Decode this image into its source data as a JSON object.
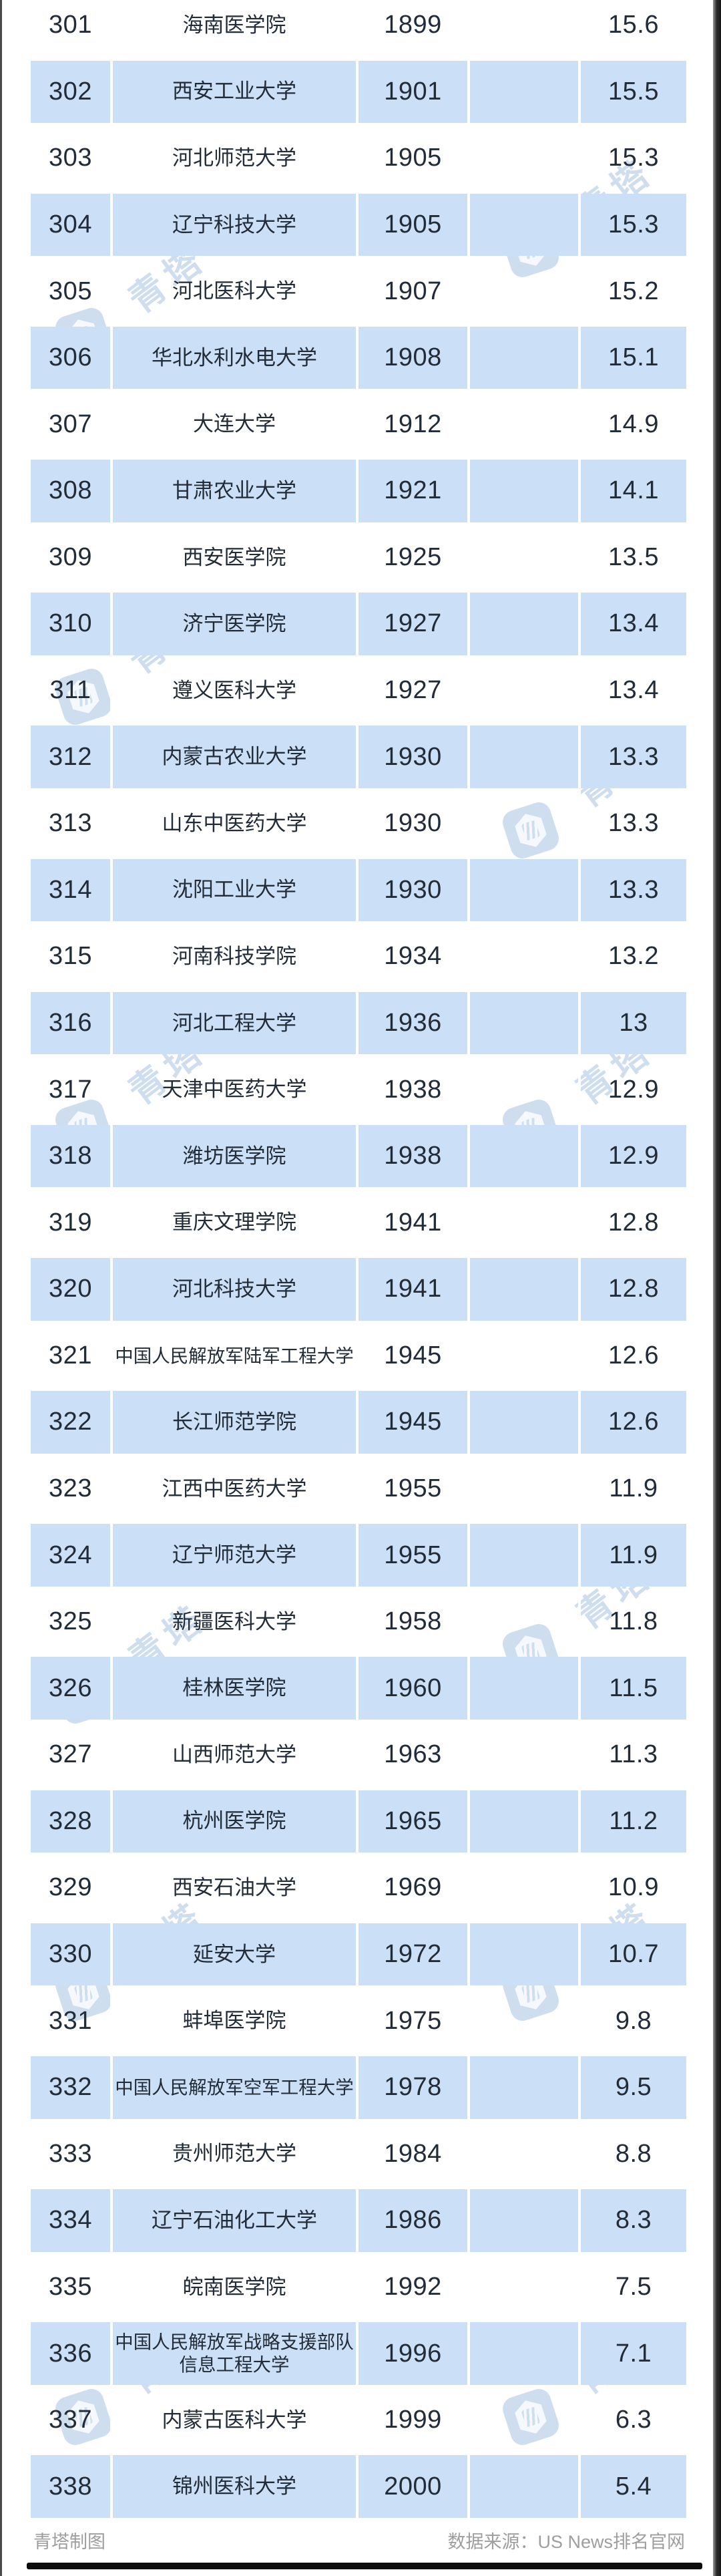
{
  "chart_data": {
    "type": "table",
    "columns": [
      "rank",
      "university",
      "world_rank",
      "score"
    ],
    "rows": [
      {
        "rank": "301",
        "university": "海南医学院",
        "world_rank": "1899",
        "score": "15.6"
      },
      {
        "rank": "302",
        "university": "西安工业大学",
        "world_rank": "1901",
        "score": "15.5"
      },
      {
        "rank": "303",
        "university": "河北师范大学",
        "world_rank": "1905",
        "score": "15.3"
      },
      {
        "rank": "304",
        "university": "辽宁科技大学",
        "world_rank": "1905",
        "score": "15.3"
      },
      {
        "rank": "305",
        "university": "河北医科大学",
        "world_rank": "1907",
        "score": "15.2"
      },
      {
        "rank": "306",
        "university": "华北水利水电大学",
        "world_rank": "1908",
        "score": "15.1"
      },
      {
        "rank": "307",
        "university": "大连大学",
        "world_rank": "1912",
        "score": "14.9"
      },
      {
        "rank": "308",
        "university": "甘肃农业大学",
        "world_rank": "1921",
        "score": "14.1"
      },
      {
        "rank": "309",
        "university": "西安医学院",
        "world_rank": "1925",
        "score": "13.5"
      },
      {
        "rank": "310",
        "university": "济宁医学院",
        "world_rank": "1927",
        "score": "13.4"
      },
      {
        "rank": "311",
        "university": "遵义医科大学",
        "world_rank": "1927",
        "score": "13.4"
      },
      {
        "rank": "312",
        "university": "内蒙古农业大学",
        "world_rank": "1930",
        "score": "13.3"
      },
      {
        "rank": "313",
        "university": "山东中医药大学",
        "world_rank": "1930",
        "score": "13.3"
      },
      {
        "rank": "314",
        "university": "沈阳工业大学",
        "world_rank": "1930",
        "score": "13.3"
      },
      {
        "rank": "315",
        "university": "河南科技学院",
        "world_rank": "1934",
        "score": "13.2"
      },
      {
        "rank": "316",
        "university": "河北工程大学",
        "world_rank": "1936",
        "score": "13"
      },
      {
        "rank": "317",
        "university": "天津中医药大学",
        "world_rank": "1938",
        "score": "12.9"
      },
      {
        "rank": "318",
        "university": "潍坊医学院",
        "world_rank": "1938",
        "score": "12.9"
      },
      {
        "rank": "319",
        "university": "重庆文理学院",
        "world_rank": "1941",
        "score": "12.8"
      },
      {
        "rank": "320",
        "university": "河北科技大学",
        "world_rank": "1941",
        "score": "12.8"
      },
      {
        "rank": "321",
        "university": "中国人民解放军陆军工程大学",
        "world_rank": "1945",
        "score": "12.6"
      },
      {
        "rank": "322",
        "university": "长江师范学院",
        "world_rank": "1945",
        "score": "12.6"
      },
      {
        "rank": "323",
        "university": "江西中医药大学",
        "world_rank": "1955",
        "score": "11.9"
      },
      {
        "rank": "324",
        "university": "辽宁师范大学",
        "world_rank": "1955",
        "score": "11.9"
      },
      {
        "rank": "325",
        "university": "新疆医科大学",
        "world_rank": "1958",
        "score": "11.8"
      },
      {
        "rank": "326",
        "university": "桂林医学院",
        "world_rank": "1960",
        "score": "11.5"
      },
      {
        "rank": "327",
        "university": "山西师范大学",
        "world_rank": "1963",
        "score": "11.3"
      },
      {
        "rank": "328",
        "university": "杭州医学院",
        "world_rank": "1965",
        "score": "11.2"
      },
      {
        "rank": "329",
        "university": "西安石油大学",
        "world_rank": "1969",
        "score": "10.9"
      },
      {
        "rank": "330",
        "university": "延安大学",
        "world_rank": "1972",
        "score": "10.7"
      },
      {
        "rank": "331",
        "university": "蚌埠医学院",
        "world_rank": "1975",
        "score": "9.8"
      },
      {
        "rank": "332",
        "university": "中国人民解放军空军工程大学",
        "world_rank": "1978",
        "score": "9.5"
      },
      {
        "rank": "333",
        "university": "贵州师范大学",
        "world_rank": "1984",
        "score": "8.8"
      },
      {
        "rank": "334",
        "university": "辽宁石油化工大学",
        "world_rank": "1986",
        "score": "8.3"
      },
      {
        "rank": "335",
        "university": "皖南医学院",
        "world_rank": "1992",
        "score": "7.5"
      },
      {
        "rank": "336",
        "university": "中国人民解放军战略支援部队\n信息工程大学",
        "world_rank": "1996",
        "score": "7.1"
      },
      {
        "rank": "337",
        "university": "内蒙古医科大学",
        "world_rank": "1999",
        "score": "6.3"
      },
      {
        "rank": "338",
        "university": "锦州医科大学",
        "world_rank": "2000",
        "score": "5.4"
      }
    ]
  },
  "footer": {
    "credit": "青塔制图",
    "source": "数据来源：US News排名官网"
  },
  "watermark": {
    "text": "青塔"
  },
  "colors": {
    "row_blue": "#cbdff6",
    "text_dark": "#222b38",
    "footer_gray": "#9e9e9e",
    "watermark_blue": "#8fb1da"
  }
}
